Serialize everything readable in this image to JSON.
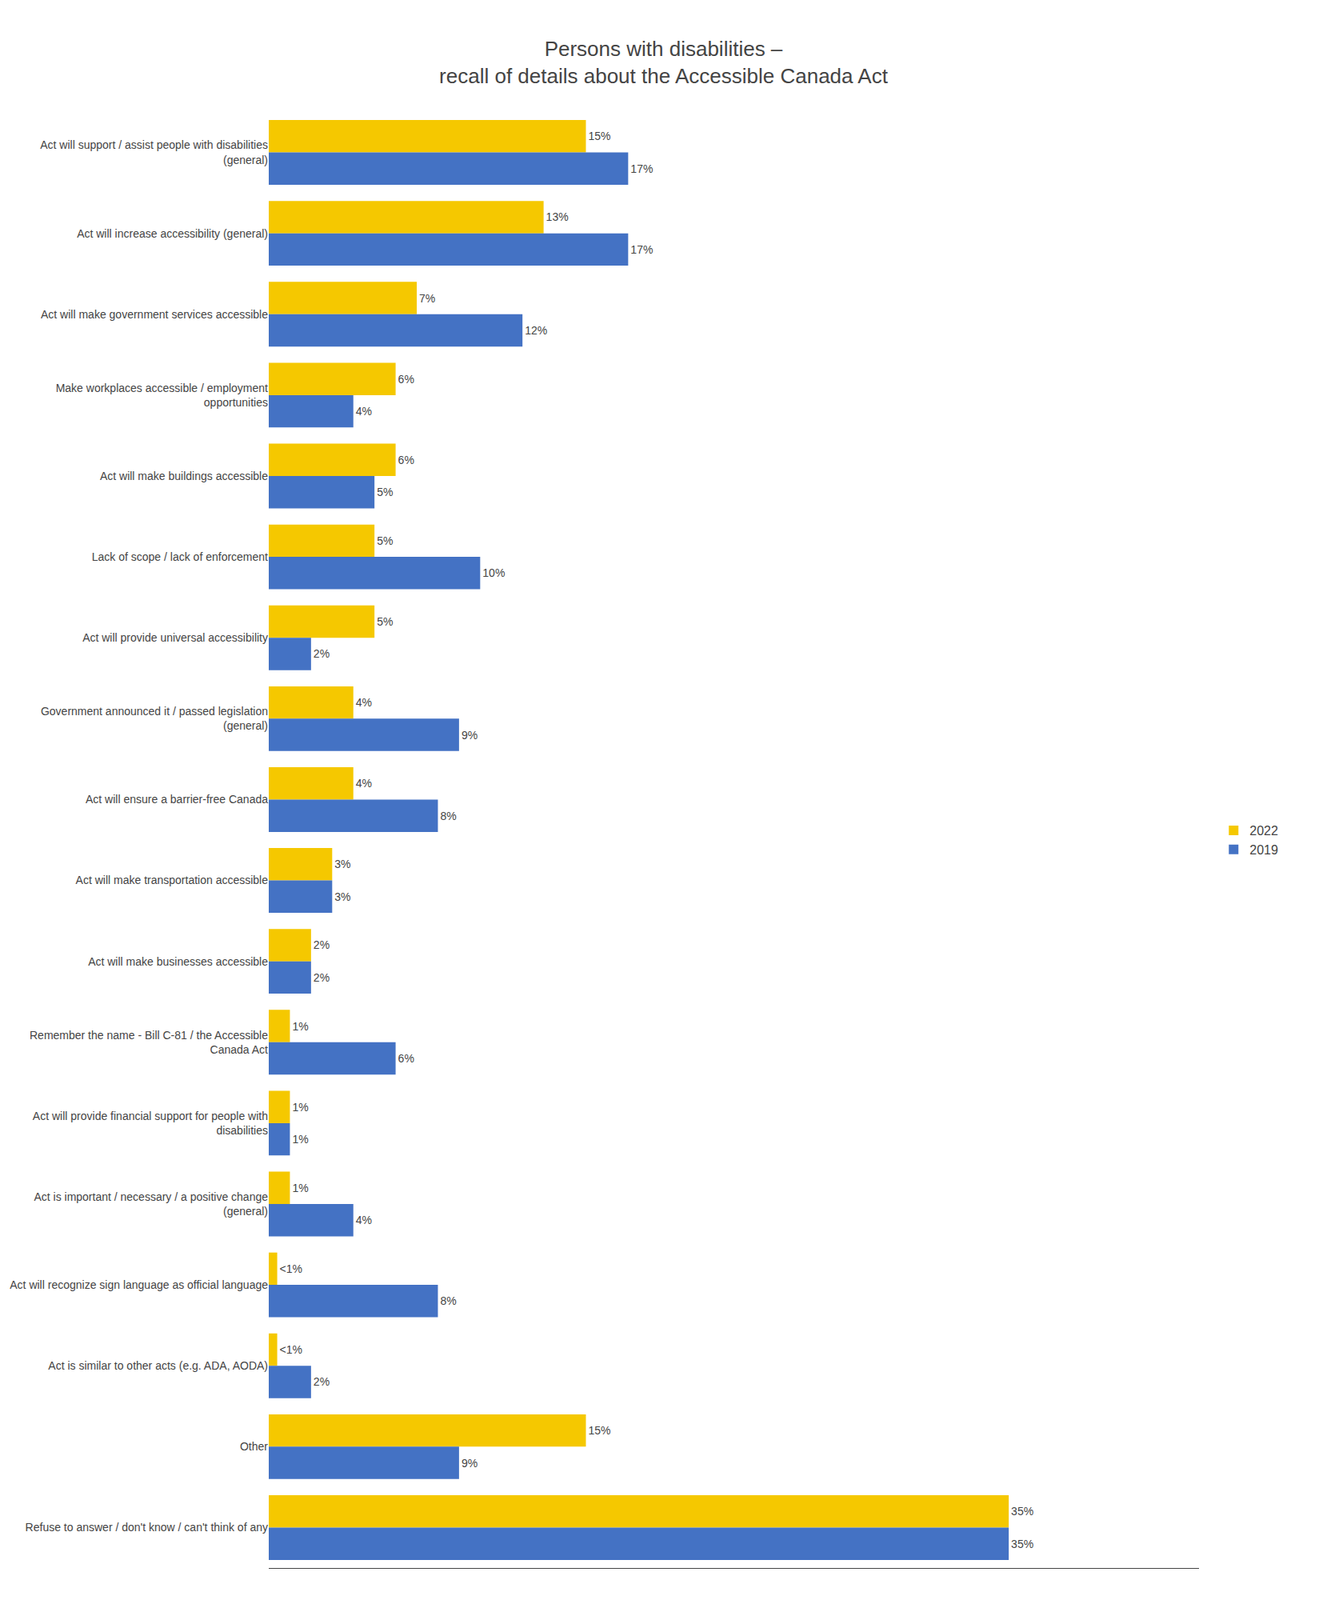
{
  "chart_data": {
    "type": "bar",
    "orientation": "horizontal",
    "title": "Persons with disabilities –\nrecall of details about the Accessible Canada Act",
    "categories": [
      "Act will support / assist people with disabilities\n(general)",
      "Act will increase accessibility (general)",
      "Act will make government services accessible",
      "Make workplaces accessible / employment\nopportunities",
      "Act will make buildings accessible",
      "Lack of scope / lack of enforcement",
      "Act will provide universal accessibility",
      "Government announced it / passed legislation\n(general)",
      "Act will ensure a barrier-free Canada",
      "Act will make transportation accessible",
      "Act will make businesses accessible",
      "Remember the name - Bill C-81 / the Accessible\nCanada Act",
      "Act will provide financial support for people with\ndisabilities",
      "Act is important / necessary / a positive change\n(general)",
      "Act will recognize sign language as official language",
      "Act is similar to other acts (e.g. ADA, AODA)",
      "Other",
      "Refuse to answer / don't know / can't think of any"
    ],
    "series": [
      {
        "name": "2022",
        "color": "#F5C800",
        "values": [
          15,
          13,
          7,
          6,
          6,
          5,
          5,
          4,
          4,
          3,
          2,
          1,
          1,
          1,
          0.4,
          0.4,
          15,
          35
        ],
        "value_labels": [
          "15%",
          "13%",
          "7%",
          "6%",
          "6%",
          "5%",
          "5%",
          "4%",
          "4%",
          "3%",
          "2%",
          "1%",
          "1%",
          "1%",
          "<1%",
          "<1%",
          "15%",
          "35%"
        ]
      },
      {
        "name": "2019",
        "color": "#4472C4",
        "values": [
          17,
          17,
          12,
          4,
          5,
          10,
          2,
          9,
          8,
          3,
          2,
          6,
          1,
          4,
          8,
          2,
          9,
          35
        ],
        "value_labels": [
          "17%",
          "17%",
          "12%",
          "4%",
          "5%",
          "10%",
          "2%",
          "9%",
          "8%",
          "3%",
          "2%",
          "6%",
          "1%",
          "4%",
          "8%",
          "2%",
          "9%",
          "35%"
        ]
      }
    ],
    "xlim": [
      0,
      44
    ],
    "grid": false,
    "legend": "right",
    "data_labels": true,
    "tick_labels": "y"
  }
}
